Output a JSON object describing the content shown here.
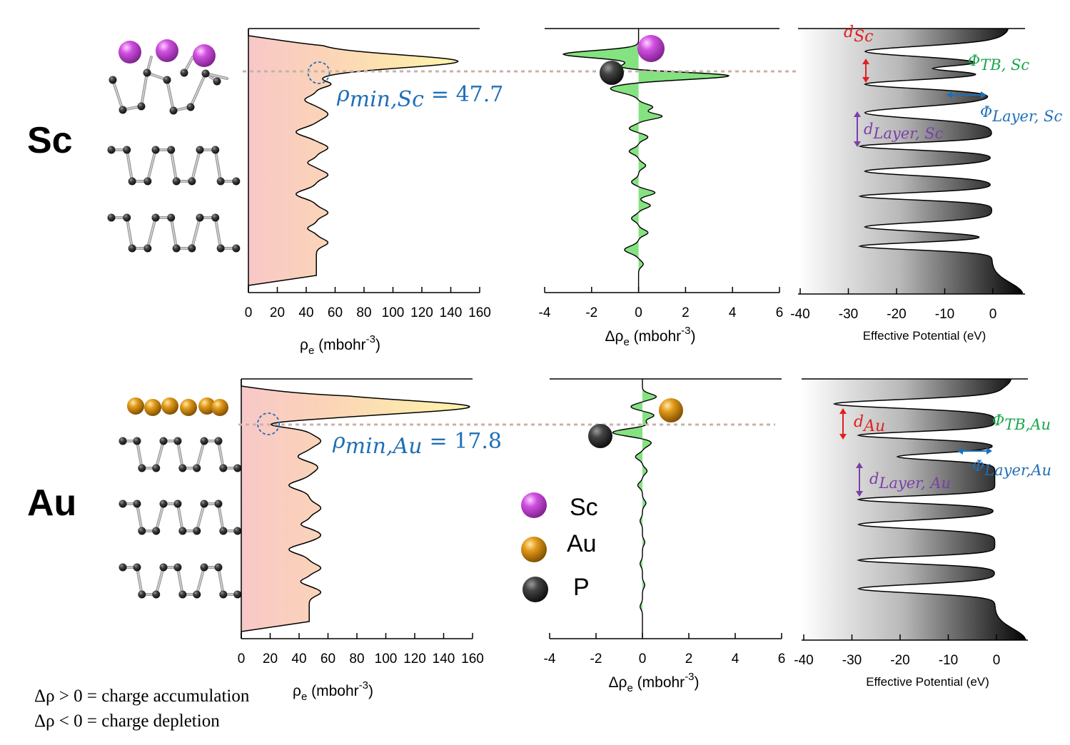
{
  "rows": [
    {
      "label": "Sc",
      "metal": "Sc",
      "rho_min_label": "ρ",
      "rho_min_sub": "min,Sc",
      "rho_min_value": "= 47.7",
      "d_metal": "d",
      "d_metal_sub": "Sc",
      "phi_tb": "Φ",
      "phi_tb_sub": "TB, Sc",
      "phi_layer": "Φ",
      "phi_layer_sub": "Layer, Sc",
      "d_layer": "d",
      "d_layer_sub": "Layer, Sc"
    },
    {
      "label": "Au",
      "metal": "Au",
      "rho_min_label": "ρ",
      "rho_min_sub": "min,Au",
      "rho_min_value": "= 17.8",
      "d_metal": "d",
      "d_metal_sub": "Au",
      "phi_tb": "Φ",
      "phi_tb_sub": "TB,Au",
      "phi_layer": "Φ",
      "phi_layer_sub": "Layer,Au",
      "d_layer": "d",
      "d_layer_sub": "Layer, Au"
    }
  ],
  "axes": {
    "rho": {
      "ticks": [
        "0",
        "20",
        "40",
        "60",
        "80",
        "100",
        "120",
        "140",
        "160"
      ],
      "label_main": "ρ",
      "label_sub": "e",
      "label_rest": " (mbohr",
      "label_sup": "-3",
      "label_end": ")"
    },
    "drho": {
      "ticks": [
        "-4",
        "-2",
        "0",
        "2",
        "4",
        "6"
      ],
      "label_main": "Δρ",
      "label_sub": "e",
      "label_rest": " (mbohr",
      "label_sup": "-3",
      "label_end": ")"
    },
    "pot": {
      "ticks": [
        "-40",
        "-30",
        "-20",
        "-10",
        "0"
      ],
      "label": "Effective Potential (eV)"
    }
  },
  "legend": [
    {
      "name": "Sc",
      "color": "#c040d0"
    },
    {
      "name": "Au",
      "color": "#d08a10"
    },
    {
      "name": "P",
      "color": "#333333"
    }
  ],
  "notes": [
    "Δρ > 0 = charge accumulation",
    "Δρ < 0 = charge depletion"
  ],
  "chart_data": [
    {
      "type": "area",
      "panel": "Sc electron density",
      "xlabel": "ρe (mbohr-3)",
      "xlim": [
        0,
        160
      ],
      "series": [
        {
          "values_profile": [
            0,
            145,
            48,
            58,
            35,
            55,
            40,
            55,
            35,
            55,
            40,
            55,
            0
          ]
        }
      ]
    },
    {
      "type": "area",
      "panel": "Sc charge difference",
      "xlabel": "Δρe (mbohr-3)",
      "xlim": [
        -4,
        6
      ],
      "series": [
        {
          "values_profile": [
            0,
            -3.2,
            4.1,
            -1.2,
            1.0,
            0.4,
            -0.4,
            0.3,
            -0.3,
            0.7,
            0.4,
            -0.6,
            0
          ]
        }
      ]
    },
    {
      "type": "area",
      "panel": "Sc effective potential",
      "xlabel": "Effective Potential (eV)",
      "xlim": [
        -40,
        5
      ],
      "series": [
        {
          "values_profile": [
            3,
            -26,
            -12,
            -26,
            -9,
            -27,
            -1,
            -27,
            -8,
            -27,
            -1,
            -27,
            -8,
            -26,
            5
          ]
        }
      ]
    },
    {
      "type": "area",
      "panel": "Au electron density",
      "xlabel": "ρe (mbohr-3)",
      "xlim": [
        0,
        160
      ],
      "series": [
        {
          "values_profile": [
            0,
            158,
            17.8,
            55,
            35,
            55,
            40,
            55,
            35,
            55,
            40,
            55,
            0
          ]
        }
      ]
    },
    {
      "type": "area",
      "panel": "Au charge difference",
      "xlabel": "Δρe (mbohr-3)",
      "xlim": [
        -4,
        6
      ],
      "series": [
        {
          "values_profile": [
            0,
            0.6,
            -0.6,
            0.5,
            -1.3,
            0.4,
            -0.3,
            0.2,
            -0.2,
            0.1,
            0
          ]
        }
      ]
    },
    {
      "type": "area",
      "panel": "Au effective potential",
      "xlabel": "Effective Potential (eV)",
      "xlim": [
        -40,
        5
      ],
      "series": [
        {
          "values_profile": [
            3,
            -33,
            -2,
            -28,
            -9,
            -28,
            -1,
            -28,
            -9,
            -28,
            -1,
            -28,
            -9,
            -28,
            6
          ]
        }
      ]
    }
  ]
}
